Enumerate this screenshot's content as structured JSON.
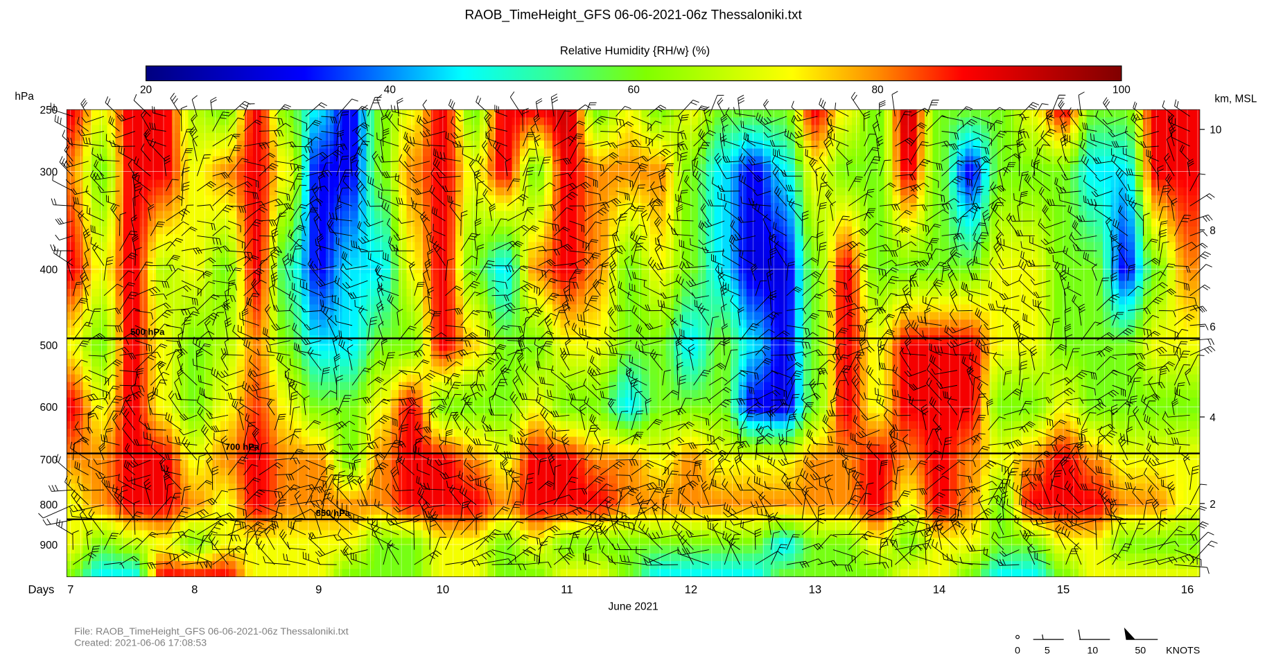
{
  "chart_data": {
    "type": "heatmap",
    "title": "RAOB_TimeHeight_GFS 06-06-2021-06z Thessaloniki.txt",
    "colorbar": {
      "label": "Relative Humidity {RH/w} (%)",
      "range": [
        20,
        100
      ],
      "ticks": [
        "20",
        "40",
        "60",
        "80",
        "100"
      ],
      "colorscale": [
        [
          20,
          "#000080"
        ],
        [
          33,
          "#0000ff"
        ],
        [
          46,
          "#00ffff"
        ],
        [
          53,
          "#33ff99"
        ],
        [
          61,
          "#80ff00"
        ],
        [
          73,
          "#ffff00"
        ],
        [
          80,
          "#ff8c00"
        ],
        [
          87,
          "#ff0000"
        ],
        [
          100,
          "#800000"
        ]
      ]
    },
    "yaxis_left": {
      "label": "hPa",
      "ticks": [
        "250",
        "300",
        "400",
        "500",
        "600",
        "700",
        "800",
        "900"
      ],
      "values": [
        250,
        300,
        400,
        500,
        600,
        700,
        800,
        900
      ],
      "range": [
        250,
        990
      ],
      "scale": "log"
    },
    "yaxis_right": {
      "label": "km, MSL",
      "ticks": [
        "10",
        "8",
        "6",
        "4",
        "2"
      ],
      "pressure_equiv": [
        265,
        355,
        485,
        640,
        800
      ]
    },
    "xaxis": {
      "label": "Days",
      "sublabel": "June 2021",
      "ticks": [
        "7",
        "8",
        "9",
        "10",
        "11",
        "12",
        "13",
        "14",
        "15",
        "16"
      ],
      "values": [
        7,
        8,
        9,
        10,
        11,
        12,
        13,
        14,
        15,
        16
      ],
      "range": [
        6.97,
        16.1
      ]
    },
    "reference_lines": [
      {
        "p": 500,
        "label": "500 hPa"
      },
      {
        "p": 700,
        "label": "700 hPa"
      },
      {
        "p": 850,
        "label": "850 hPa"
      }
    ],
    "levels": [
      250,
      300,
      400,
      500,
      600,
      700,
      800,
      900,
      990
    ],
    "times": [
      7.0,
      7.25,
      7.5,
      7.75,
      8.0,
      8.25,
      8.5,
      8.75,
      9.0,
      9.25,
      9.5,
      9.75,
      10.0,
      10.25,
      10.5,
      10.75,
      11.0,
      11.25,
      11.5,
      11.75,
      12.0,
      12.25,
      12.5,
      12.75,
      13.0,
      13.25,
      13.5,
      13.75,
      14.0,
      14.25,
      14.5,
      14.75,
      15.0,
      15.25,
      15.5,
      15.75,
      16.0
    ],
    "rh": [
      [
        88,
        80,
        88,
        72,
        88,
        80,
        72,
        72,
        60
      ],
      [
        72,
        60,
        72,
        60,
        72,
        80,
        80,
        60,
        45
      ],
      [
        88,
        88,
        88,
        88,
        88,
        88,
        88,
        66,
        45
      ],
      [
        88,
        88,
        66,
        72,
        72,
        88,
        88,
        72,
        88
      ],
      [
        66,
        72,
        72,
        60,
        60,
        72,
        80,
        60,
        88
      ],
      [
        60,
        80,
        60,
        66,
        72,
        80,
        72,
        72,
        88
      ],
      [
        88,
        88,
        88,
        80,
        84,
        88,
        88,
        72,
        72
      ],
      [
        60,
        72,
        52,
        60,
        72,
        80,
        80,
        72,
        72
      ],
      [
        45,
        32,
        33,
        45,
        60,
        80,
        80,
        72,
        72
      ],
      [
        32,
        32,
        45,
        45,
        60,
        60,
        80,
        72,
        60
      ],
      [
        60,
        60,
        45,
        60,
        72,
        80,
        80,
        60,
        60
      ],
      [
        72,
        80,
        72,
        60,
        88,
        88,
        88,
        60,
        60
      ],
      [
        88,
        88,
        88,
        88,
        60,
        88,
        88,
        72,
        72
      ],
      [
        60,
        72,
        60,
        76,
        60,
        80,
        88,
        72,
        72
      ],
      [
        88,
        88,
        45,
        60,
        60,
        72,
        80,
        60,
        60
      ],
      [
        88,
        60,
        80,
        60,
        72,
        88,
        88,
        72,
        60
      ],
      [
        92,
        88,
        88,
        72,
        60,
        88,
        88,
        60,
        72
      ],
      [
        60,
        80,
        80,
        72,
        60,
        80,
        88,
        60,
        72
      ],
      [
        72,
        80,
        60,
        60,
        45,
        80,
        80,
        60,
        60
      ],
      [
        60,
        80,
        72,
        60,
        60,
        72,
        80,
        60,
        45
      ],
      [
        72,
        60,
        60,
        45,
        60,
        80,
        80,
        60,
        45
      ],
      [
        60,
        45,
        45,
        60,
        60,
        72,
        80,
        60,
        45
      ],
      [
        60,
        32,
        30,
        45,
        32,
        72,
        80,
        60,
        45
      ],
      [
        60,
        45,
        30,
        32,
        30,
        72,
        80,
        45,
        60
      ],
      [
        88,
        72,
        60,
        60,
        60,
        80,
        80,
        60,
        60
      ],
      [
        72,
        60,
        88,
        88,
        88,
        80,
        80,
        60,
        60
      ],
      [
        60,
        60,
        60,
        72,
        72,
        88,
        88,
        72,
        60
      ],
      [
        92,
        88,
        60,
        88,
        88,
        80,
        72,
        60,
        72
      ],
      [
        60,
        60,
        60,
        88,
        88,
        88,
        88,
        72,
        72
      ],
      [
        60,
        32,
        60,
        88,
        88,
        80,
        80,
        72,
        60
      ],
      [
        60,
        60,
        72,
        72,
        60,
        72,
        60,
        60,
        45
      ],
      [
        72,
        60,
        72,
        72,
        60,
        80,
        88,
        60,
        45
      ],
      [
        88,
        60,
        60,
        60,
        72,
        88,
        88,
        72,
        60
      ],
      [
        60,
        45,
        60,
        60,
        60,
        80,
        88,
        72,
        72
      ],
      [
        60,
        45,
        33,
        60,
        60,
        72,
        80,
        60,
        72
      ],
      [
        88,
        88,
        60,
        72,
        60,
        72,
        80,
        60,
        72
      ],
      [
        88,
        88,
        80,
        72,
        60,
        72,
        72,
        60,
        72
      ]
    ],
    "wind_legend": {
      "labels": [
        "0",
        "5",
        "10",
        "50"
      ],
      "unit": "KNOTS"
    }
  },
  "footer": {
    "file": "File: RAOB_TimeHeight_GFS 06-06-2021-06z Thessaloniki.txt",
    "created": "Created:  2021-06-06  17:08:53"
  }
}
